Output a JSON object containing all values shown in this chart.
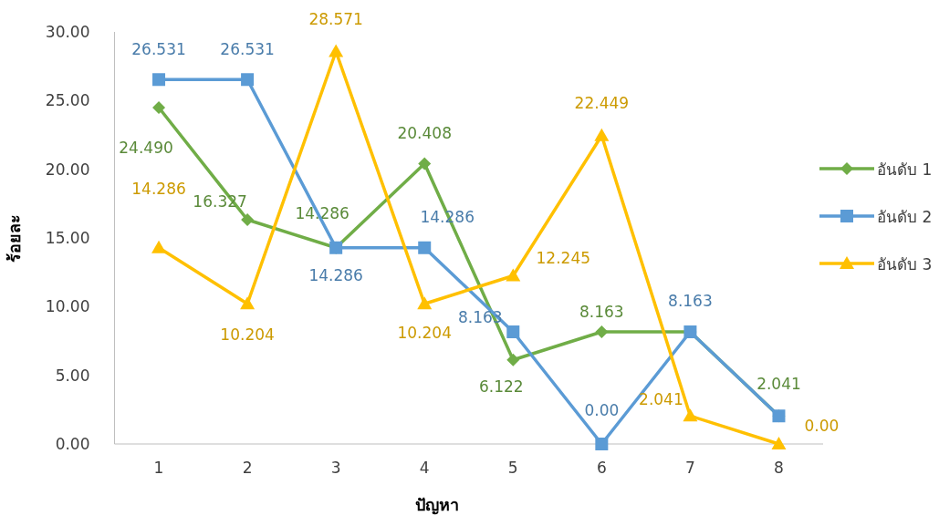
{
  "chart_data": {
    "type": "line",
    "xlabel": "ปัญหา",
    "ylabel": "ร้อยละ",
    "categories": [
      "1",
      "2",
      "3",
      "4",
      "5",
      "6",
      "7",
      "8"
    ],
    "ylim": [
      0,
      30
    ],
    "yticks": [
      {
        "value": 0,
        "label": "0.00"
      },
      {
        "value": 5,
        "label": "5.00"
      },
      {
        "value": 10,
        "label": "10.00"
      },
      {
        "value": 15,
        "label": "15.00"
      },
      {
        "value": 20,
        "label": "20.00"
      },
      {
        "value": 25,
        "label": "25.00"
      },
      {
        "value": 30,
        "label": "30.00"
      }
    ],
    "grid": false,
    "legend": "right",
    "series": [
      {
        "name": "อันดับ 1",
        "color": "#70ad47",
        "marker": "diamond",
        "values": [
          24.49,
          16.327,
          14.286,
          20.408,
          6.122,
          8.163,
          8.163,
          2.041
        ],
        "value_labels": [
          "24.490",
          "16.327",
          "14.286",
          "20.408",
          "6.122",
          "8.163",
          null,
          "2.041"
        ]
      },
      {
        "name": "อันดับ 2",
        "color": "#5b9bd5",
        "marker": "square",
        "values": [
          26.531,
          26.531,
          14.286,
          14.286,
          8.163,
          0.0,
          8.163,
          2.041
        ],
        "value_labels": [
          "26.531",
          "26.531",
          "14.286",
          "14.286",
          "8.163",
          "0.00",
          "8.163",
          null
        ]
      },
      {
        "name": "อันดับ 3",
        "color": "#ffc000",
        "marker": "triangle",
        "values": [
          14.286,
          10.204,
          28.571,
          10.204,
          12.245,
          22.449,
          2.041,
          0.0
        ],
        "value_labels": [
          "14.286",
          "10.204",
          "28.571",
          "10.204",
          "12.245",
          "22.449",
          "2.041",
          "0.00"
        ]
      }
    ]
  }
}
